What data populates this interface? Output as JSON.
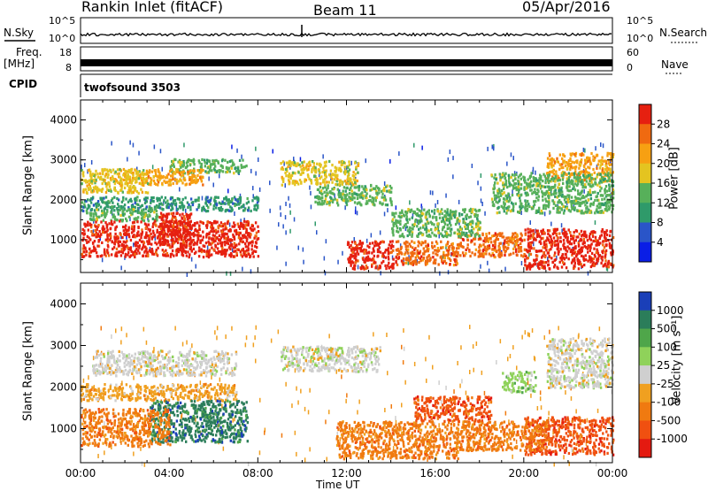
{
  "header": {
    "station": "Rankin Inlet (fitACF)",
    "beam": "Beam 11",
    "date": "05/Apr/2016"
  },
  "side_labels": {
    "nsky": "N.Sky",
    "nsearch": "N.Search",
    "freq": "Freq.",
    "mhz": "[MHz]",
    "nave": "Nave",
    "cpid": "CPID",
    "cpid_value": "twofsound 3503",
    "nsky_ticks": [
      "10^5",
      "10^0"
    ],
    "nsearch_ticks": [
      "10^5",
      "10^0"
    ],
    "freq_ticks": [
      "18",
      "8"
    ],
    "nave_ticks": [
      "60",
      "0"
    ]
  },
  "colors": {
    "power": [
      "#0a1ee6",
      "#2a55c8",
      "#2f9a6a",
      "#57b05a",
      "#e4c420",
      "#f7a012",
      "#f06a10",
      "#e62010"
    ],
    "velocity": [
      "#1a3fb8",
      "#2b7d5a",
      "#4fa64a",
      "#8fd25a",
      "#cfcfcf",
      "#f0a020",
      "#f07a10",
      "#f05010",
      "#e41a10"
    ]
  },
  "chart_data": [
    {
      "type": "heatmap",
      "name": "Power",
      "ylabel": "Slant Range [km]",
      "colorbar_label": "Power [dB]",
      "colorbar_ticks": [
        "28",
        "24",
        "20",
        "16",
        "12",
        "8",
        "4"
      ],
      "yticks": [
        "4000",
        "3000",
        "2000",
        "1000"
      ],
      "ylim": [
        180,
        4500
      ],
      "xlim_hours": [
        0,
        24
      ],
      "regions": [
        {
          "t0": 0.0,
          "t1": 8.0,
          "r0": 600,
          "r1": 1500,
          "c": 7
        },
        {
          "t0": 0.2,
          "t1": 3.5,
          "r0": 1500,
          "r1": 1800,
          "c": 3
        },
        {
          "t0": 3.5,
          "t1": 5.0,
          "r0": 900,
          "r1": 1700,
          "c": 7
        },
        {
          "t0": 0.0,
          "t1": 8.0,
          "r0": 1750,
          "r1": 2100,
          "c": 2
        },
        {
          "t0": 0.0,
          "t1": 3.0,
          "r0": 2200,
          "r1": 2800,
          "c": 4
        },
        {
          "t0": 1.5,
          "t1": 5.5,
          "r0": 2400,
          "r1": 2800,
          "c": 5
        },
        {
          "t0": 4.0,
          "t1": 7.5,
          "r0": 2700,
          "r1": 3050,
          "c": 3
        },
        {
          "t0": 9.0,
          "t1": 12.5,
          "r0": 2400,
          "r1": 3000,
          "c": 4
        },
        {
          "t0": 10.5,
          "t1": 14.0,
          "r0": 1900,
          "r1": 2400,
          "c": 3
        },
        {
          "t0": 12.0,
          "t1": 14.2,
          "r0": 300,
          "r1": 1000,
          "c": 7
        },
        {
          "t0": 14.2,
          "t1": 17.0,
          "r0": 400,
          "r1": 1000,
          "c": 6
        },
        {
          "t0": 14.0,
          "t1": 18.0,
          "r0": 1100,
          "r1": 1800,
          "c": 3
        },
        {
          "t0": 17.0,
          "t1": 20.0,
          "r0": 600,
          "r1": 1200,
          "c": 6
        },
        {
          "t0": 20.0,
          "t1": 24.0,
          "r0": 300,
          "r1": 1300,
          "c": 7
        },
        {
          "t0": 18.5,
          "t1": 24.0,
          "r0": 1700,
          "r1": 2700,
          "c": 3
        },
        {
          "t0": 21.0,
          "t1": 24.0,
          "r0": 2500,
          "r1": 3200,
          "c": 5
        },
        {
          "t0": 0.0,
          "t1": 24.0,
          "r0": 180,
          "r1": 3500,
          "c": 1
        }
      ]
    },
    {
      "type": "heatmap",
      "name": "Velocity",
      "ylabel": "Slant Range [km]",
      "xlabel": "Time UT",
      "colorbar_label": "Velocity [m s⁻¹]",
      "colorbar_ticks": [
        "1000",
        "500",
        "100",
        "25",
        "-25",
        "-100",
        "-500",
        "-1000"
      ],
      "yticks": [
        "4000",
        "3000",
        "2000",
        "1000"
      ],
      "ylim": [
        180,
        4500
      ],
      "xlim_hours": [
        0,
        24
      ],
      "xticks": [
        "00:00",
        "04:00",
        "08:00",
        "12:00",
        "16:00",
        "20:00",
        "00:00"
      ],
      "regions": [
        {
          "t0": 0.0,
          "t1": 4.0,
          "r0": 600,
          "r1": 1500,
          "c": 6
        },
        {
          "t0": 3.0,
          "t1": 7.5,
          "r0": 700,
          "r1": 1700,
          "c": 1
        },
        {
          "t0": 0.0,
          "t1": 7.0,
          "r0": 1700,
          "r1": 2100,
          "c": 5
        },
        {
          "t0": 0.5,
          "t1": 7.0,
          "r0": 2300,
          "r1": 2900,
          "c": 4
        },
        {
          "t0": 9.0,
          "t1": 13.5,
          "r0": 2400,
          "r1": 3000,
          "c": 4
        },
        {
          "t0": 11.5,
          "t1": 17.0,
          "r0": 300,
          "r1": 1200,
          "c": 6
        },
        {
          "t0": 15.0,
          "t1": 18.5,
          "r0": 1200,
          "r1": 1800,
          "c": 7
        },
        {
          "t0": 17.0,
          "t1": 21.0,
          "r0": 500,
          "r1": 1200,
          "c": 6
        },
        {
          "t0": 19.0,
          "t1": 20.5,
          "r0": 1900,
          "r1": 2400,
          "c": 3
        },
        {
          "t0": 20.0,
          "t1": 24.0,
          "r0": 400,
          "r1": 1300,
          "c": 7
        },
        {
          "t0": 21.0,
          "t1": 24.0,
          "r0": 2000,
          "r1": 3200,
          "c": 4
        },
        {
          "t0": 0.0,
          "t1": 24.0,
          "r0": 180,
          "r1": 3500,
          "c": 5
        }
      ]
    }
  ]
}
